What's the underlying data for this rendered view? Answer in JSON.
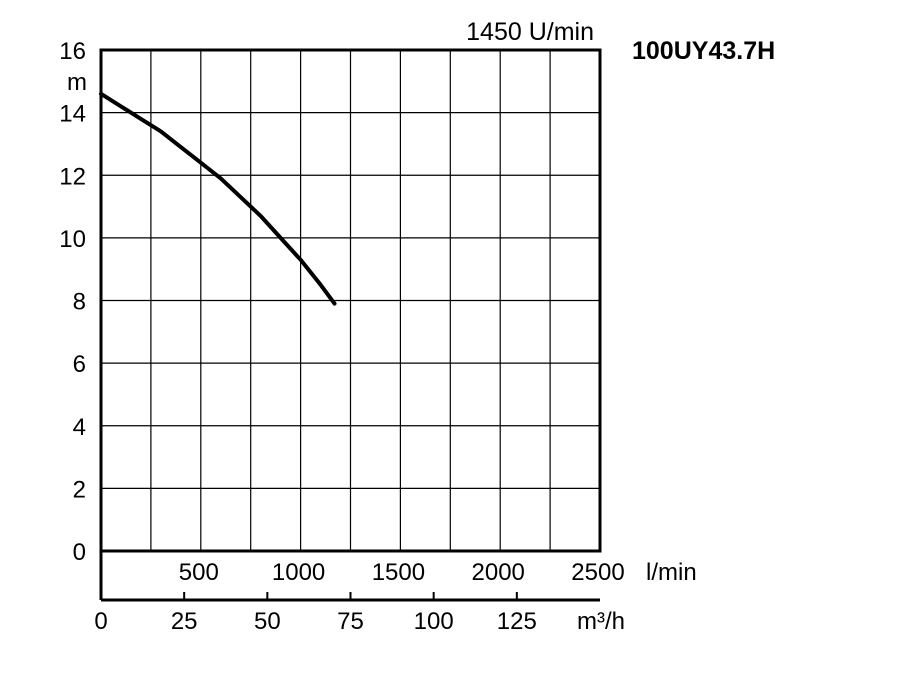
{
  "chart_data": {
    "type": "line",
    "model": "100UY43.7H",
    "speed_label": "1450 U/min",
    "ylabel": "m",
    "x_unit_primary": "l/min",
    "x_unit_secondary": "m³/h",
    "ylim": [
      0,
      16
    ],
    "y_ticks": [
      "0",
      "2",
      "4",
      "6",
      "8",
      "10",
      "12",
      "14",
      "16"
    ],
    "xlim_lmin": [
      0,
      2500
    ],
    "x_ticks_lmin": [
      "500",
      "1000",
      "1500",
      "2000",
      "2500"
    ],
    "x_ticks_m3h": [
      "0",
      "25",
      "50",
      "75",
      "100",
      "125"
    ],
    "grid": true,
    "series": [
      {
        "x": [
          0,
          100,
          200,
          300,
          400,
          500,
          600,
          700,
          800,
          900,
          1000,
          1100,
          1170
        ],
        "y": [
          14.6,
          14.2,
          13.8,
          13.4,
          12.9,
          12.4,
          11.9,
          11.3,
          10.7,
          10.0,
          9.3,
          8.5,
          7.9
        ]
      }
    ]
  }
}
